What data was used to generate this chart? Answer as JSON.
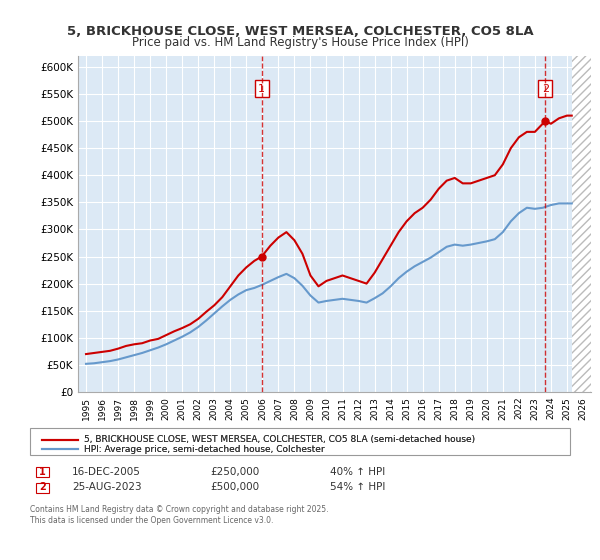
{
  "title": "5, BRICKHOUSE CLOSE, WEST MERSEA, COLCHESTER, CO5 8LA",
  "subtitle": "Price paid vs. HM Land Registry's House Price Index (HPI)",
  "xlabel": "",
  "ylabel": "",
  "ylim": [
    0,
    620000
  ],
  "xlim": [
    1994.5,
    2026.5
  ],
  "yticks": [
    0,
    50000,
    100000,
    150000,
    200000,
    250000,
    300000,
    350000,
    400000,
    450000,
    500000,
    550000,
    600000
  ],
  "ytick_labels": [
    "£0",
    "£50K",
    "£100K",
    "£150K",
    "£200K",
    "£250K",
    "£300K",
    "£350K",
    "£400K",
    "£450K",
    "£500K",
    "£550K",
    "£600K"
  ],
  "xticks": [
    1995,
    1996,
    1997,
    1998,
    1999,
    2000,
    2001,
    2002,
    2003,
    2004,
    2005,
    2006,
    2007,
    2008,
    2009,
    2010,
    2011,
    2012,
    2013,
    2014,
    2015,
    2016,
    2017,
    2018,
    2019,
    2020,
    2021,
    2022,
    2023,
    2024,
    2025,
    2026
  ],
  "background_color": "#ffffff",
  "plot_bg_color": "#dce9f5",
  "grid_color": "#ffffff",
  "red_line_color": "#cc0000",
  "blue_line_color": "#6699cc",
  "marker1_date": 2005.96,
  "marker1_price": 250000,
  "marker2_date": 2023.65,
  "marker2_price": 500000,
  "legend_label_red": "5, BRICKHOUSE CLOSE, WEST MERSEA, COLCHESTER, CO5 8LA (semi-detached house)",
  "legend_label_blue": "HPI: Average price, semi-detached house, Colchester",
  "annotation1": [
    "1",
    "16-DEC-2005",
    "£250,000",
    "40% ↑ HPI"
  ],
  "annotation2": [
    "2",
    "25-AUG-2023",
    "£500,000",
    "54% ↑ HPI"
  ],
  "footer": "Contains HM Land Registry data © Crown copyright and database right 2025.\nThis data is licensed under the Open Government Licence v3.0.",
  "hatch_color": "#cccccc",
  "red_line_x": [
    1995.0,
    1995.5,
    1996.0,
    1996.5,
    1997.0,
    1997.5,
    1998.0,
    1998.5,
    1999.0,
    1999.5,
    2000.0,
    2000.5,
    2001.0,
    2001.5,
    2002.0,
    2002.5,
    2003.0,
    2003.5,
    2004.0,
    2004.5,
    2005.0,
    2005.5,
    2005.96,
    2006.5,
    2007.0,
    2007.5,
    2008.0,
    2008.5,
    2009.0,
    2009.5,
    2010.0,
    2010.5,
    2011.0,
    2011.5,
    2012.0,
    2012.5,
    2013.0,
    2013.5,
    2014.0,
    2014.5,
    2015.0,
    2015.5,
    2016.0,
    2016.5,
    2017.0,
    2017.5,
    2018.0,
    2018.5,
    2019.0,
    2019.5,
    2020.0,
    2020.5,
    2021.0,
    2021.5,
    2022.0,
    2022.5,
    2023.0,
    2023.65,
    2024.0,
    2024.5,
    2025.0,
    2025.3
  ],
  "red_line_y": [
    70000,
    72000,
    74000,
    76000,
    80000,
    85000,
    88000,
    90000,
    95000,
    98000,
    105000,
    112000,
    118000,
    125000,
    135000,
    148000,
    160000,
    175000,
    195000,
    215000,
    230000,
    242000,
    250000,
    270000,
    285000,
    295000,
    280000,
    255000,
    215000,
    195000,
    205000,
    210000,
    215000,
    210000,
    205000,
    200000,
    220000,
    245000,
    270000,
    295000,
    315000,
    330000,
    340000,
    355000,
    375000,
    390000,
    395000,
    385000,
    385000,
    390000,
    395000,
    400000,
    420000,
    450000,
    470000,
    480000,
    480000,
    500000,
    495000,
    505000,
    510000,
    510000
  ],
  "blue_line_x": [
    1995.0,
    1995.5,
    1996.0,
    1996.5,
    1997.0,
    1997.5,
    1998.0,
    1998.5,
    1999.0,
    1999.5,
    2000.0,
    2000.5,
    2001.0,
    2001.5,
    2002.0,
    2002.5,
    2003.0,
    2003.5,
    2004.0,
    2004.5,
    2005.0,
    2005.5,
    2006.0,
    2006.5,
    2007.0,
    2007.5,
    2008.0,
    2008.5,
    2009.0,
    2009.5,
    2010.0,
    2010.5,
    2011.0,
    2011.5,
    2012.0,
    2012.5,
    2013.0,
    2013.5,
    2014.0,
    2014.5,
    2015.0,
    2015.5,
    2016.0,
    2016.5,
    2017.0,
    2017.5,
    2018.0,
    2018.5,
    2019.0,
    2019.5,
    2020.0,
    2020.5,
    2021.0,
    2021.5,
    2022.0,
    2022.5,
    2023.0,
    2023.5,
    2024.0,
    2024.5,
    2025.0,
    2025.3
  ],
  "blue_line_y": [
    52000,
    53000,
    55000,
    57000,
    60000,
    64000,
    68000,
    72000,
    77000,
    82000,
    88000,
    95000,
    102000,
    110000,
    120000,
    132000,
    145000,
    158000,
    170000,
    180000,
    188000,
    192000,
    198000,
    205000,
    212000,
    218000,
    210000,
    196000,
    178000,
    165000,
    168000,
    170000,
    172000,
    170000,
    168000,
    165000,
    173000,
    182000,
    195000,
    210000,
    222000,
    232000,
    240000,
    248000,
    258000,
    268000,
    272000,
    270000,
    272000,
    275000,
    278000,
    282000,
    295000,
    315000,
    330000,
    340000,
    338000,
    340000,
    345000,
    348000,
    348000,
    348000
  ]
}
